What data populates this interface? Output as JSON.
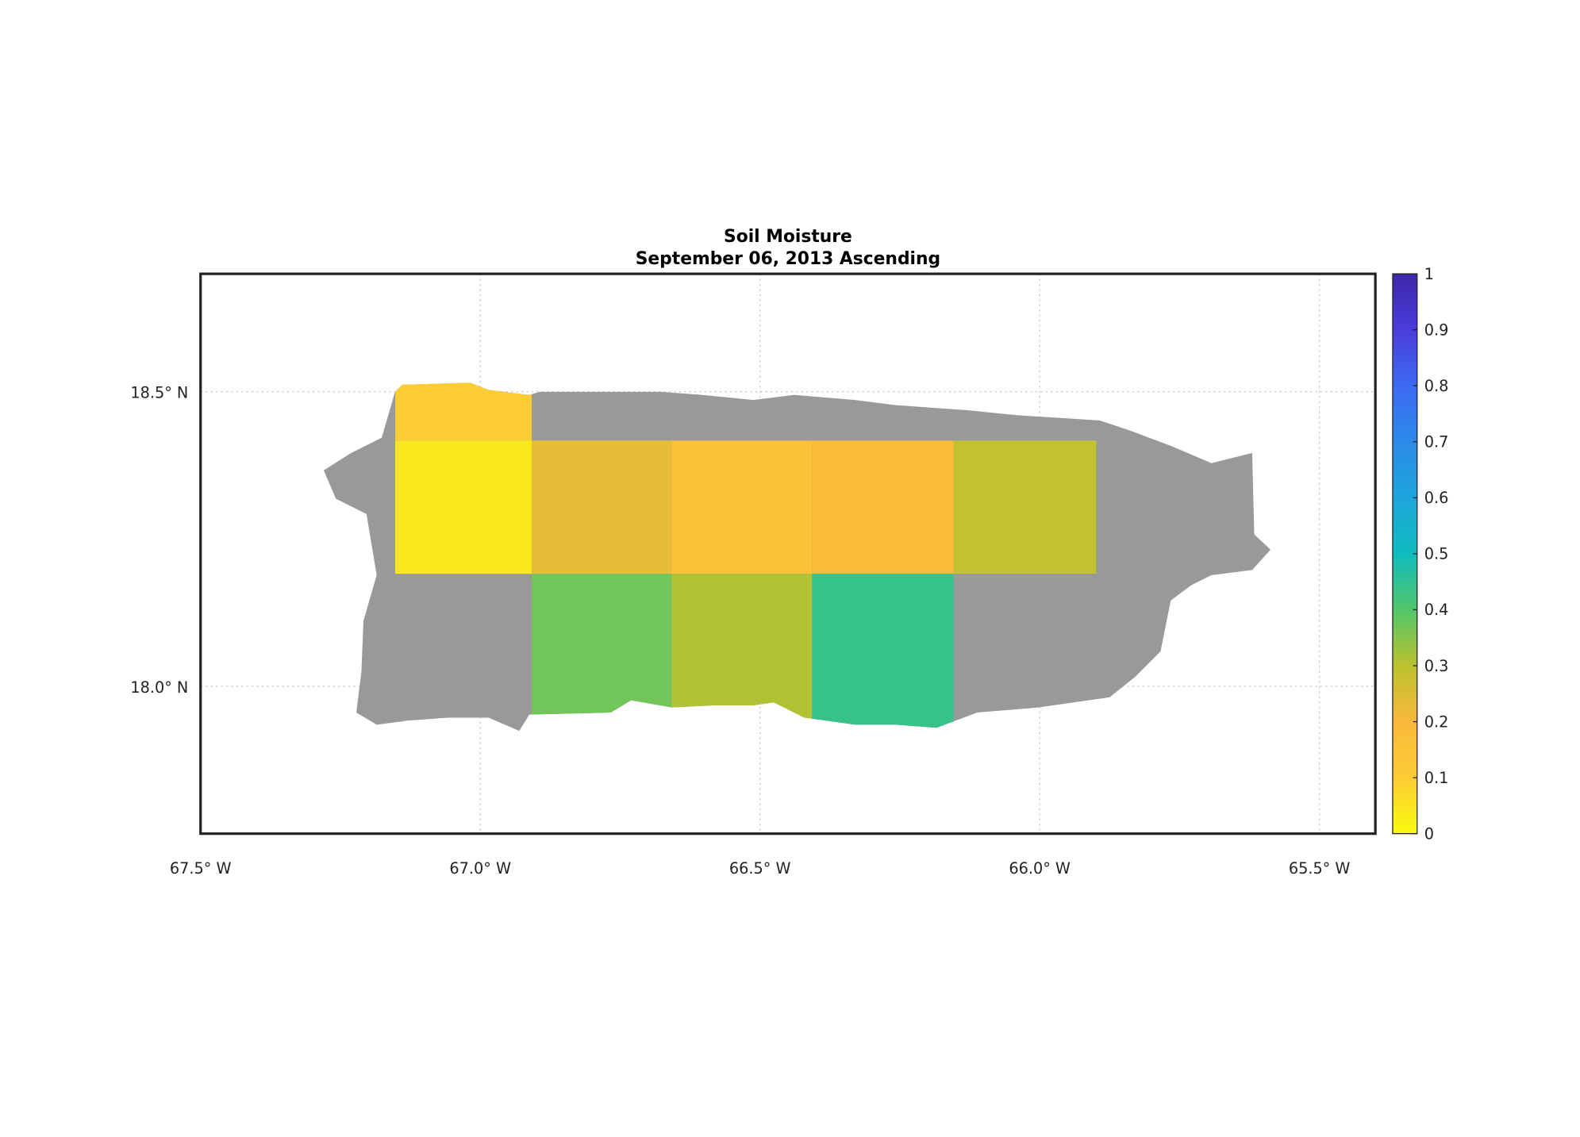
{
  "chart_data": {
    "type": "gridmap",
    "title": "Soil Moisture",
    "subtitle": "September 06, 2013 Ascending",
    "xlim": [
      -67.5,
      -65.4
    ],
    "ylim": [
      17.75,
      18.7
    ],
    "xticks": [
      {
        "value": -67.5,
        "label": "67.5° W"
      },
      {
        "value": -67.0,
        "label": "67.0° W"
      },
      {
        "value": -66.5,
        "label": "66.5° W"
      },
      {
        "value": -66.0,
        "label": "66.0° W"
      },
      {
        "value": -65.5,
        "label": "65.5° W"
      }
    ],
    "yticks": [
      {
        "value": 18.0,
        "label": "18.0° N"
      },
      {
        "value": 18.5,
        "label": "18.5° N"
      }
    ],
    "grid": true,
    "land_color": "#999999",
    "clim": [
      0,
      1
    ],
    "cticks": [
      0,
      0.1,
      0.2,
      0.3,
      0.4,
      0.5,
      0.6,
      0.7,
      0.8,
      0.9,
      1
    ],
    "colormap": [
      "#f9fb0e",
      "#fccc35",
      "#f9b93b",
      "#bcc22e",
      "#52c66a",
      "#0fbcbd",
      "#1ea5dc",
      "#2d8ae9",
      "#3d6af1",
      "#4a3ddc",
      "#3e26a8"
    ],
    "cells": [
      {
        "lon": [
          -67.152,
          -66.908
        ],
        "lat": [
          18.417,
          18.65
        ],
        "value": 0.1
      },
      {
        "lon": [
          -67.152,
          -66.908
        ],
        "lat": [
          18.191,
          18.417
        ],
        "value": 0.04
      },
      {
        "lon": [
          -66.908,
          -66.658
        ],
        "lat": [
          18.191,
          18.417
        ],
        "value": 0.23
      },
      {
        "lon": [
          -66.658,
          -66.407
        ],
        "lat": [
          18.191,
          18.417
        ],
        "value": 0.16
      },
      {
        "lon": [
          -66.407,
          -66.154
        ],
        "lat": [
          18.191,
          18.417
        ],
        "value": 0.18
      },
      {
        "lon": [
          -66.154,
          -65.899
        ],
        "lat": [
          18.191,
          18.417
        ],
        "value": 0.29
      },
      {
        "lon": [
          -66.908,
          -66.658
        ],
        "lat": [
          17.9,
          18.191
        ],
        "value": 0.37
      },
      {
        "lon": [
          -66.658,
          -66.407
        ],
        "lat": [
          17.9,
          18.191
        ],
        "value": 0.31
      },
      {
        "lon": [
          -66.407,
          -66.154
        ],
        "lat": [
          17.9,
          18.191
        ],
        "value": 0.44
      }
    ]
  }
}
